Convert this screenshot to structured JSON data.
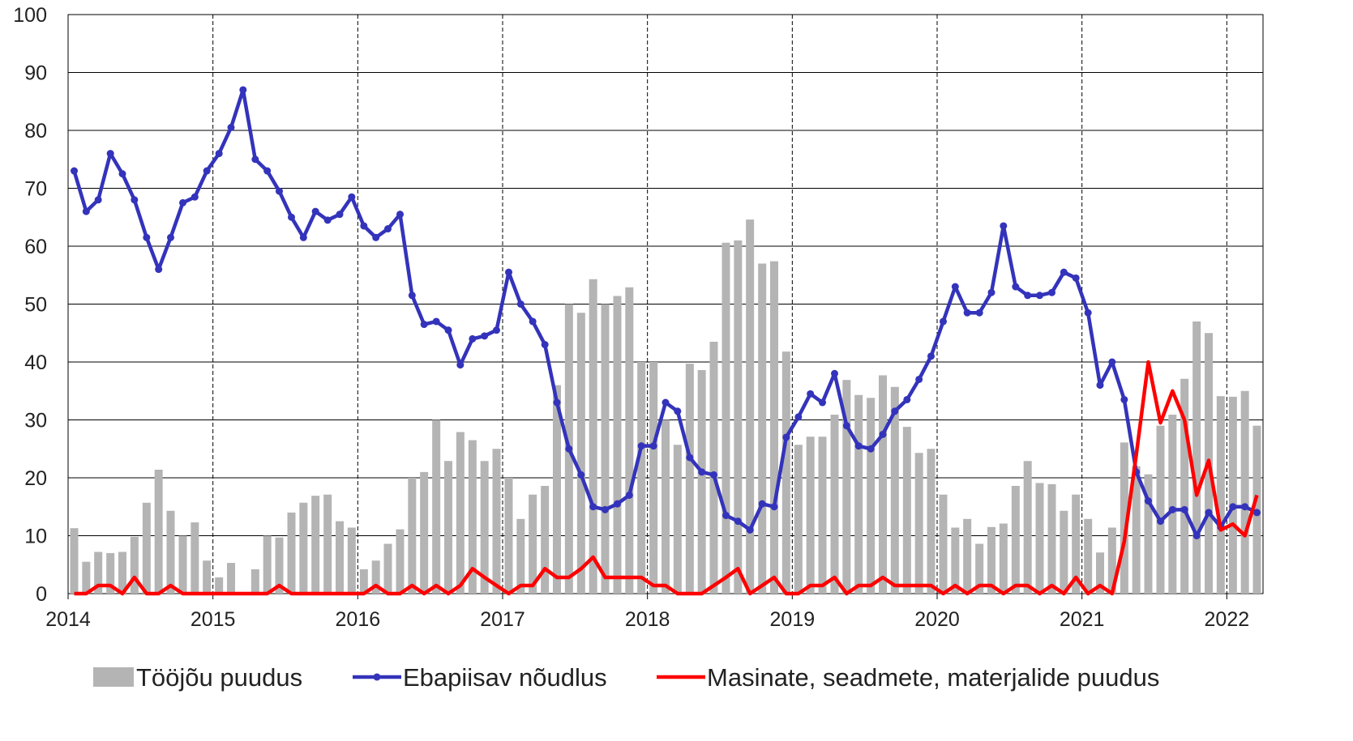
{
  "chart_data": {
    "type": "combo",
    "x": [
      2014.042,
      2014.125,
      2014.208,
      2014.292,
      2014.375,
      2014.458,
      2014.542,
      2014.625,
      2014.708,
      2014.792,
      2014.875,
      2014.958,
      2015.042,
      2015.125,
      2015.208,
      2015.292,
      2015.375,
      2015.458,
      2015.542,
      2015.625,
      2015.708,
      2015.792,
      2015.875,
      2015.958,
      2016.042,
      2016.125,
      2016.208,
      2016.292,
      2016.375,
      2016.458,
      2016.542,
      2016.625,
      2016.708,
      2016.792,
      2016.875,
      2016.958,
      2017.042,
      2017.125,
      2017.208,
      2017.292,
      2017.375,
      2017.458,
      2017.542,
      2017.625,
      2017.708,
      2017.792,
      2017.875,
      2017.958,
      2018.042,
      2018.125,
      2018.208,
      2018.292,
      2018.375,
      2018.458,
      2018.542,
      2018.625,
      2018.708,
      2018.792,
      2018.875,
      2018.958,
      2019.042,
      2019.125,
      2019.208,
      2019.292,
      2019.375,
      2019.458,
      2019.542,
      2019.625,
      2019.708,
      2019.792,
      2019.875,
      2019.958,
      2020.042,
      2020.125,
      2020.208,
      2020.292,
      2020.375,
      2020.458,
      2020.542,
      2020.625,
      2020.708,
      2020.792,
      2020.875,
      2020.958,
      2021.042,
      2021.125,
      2021.208,
      2021.292,
      2021.375,
      2021.458,
      2021.542,
      2021.625,
      2021.708,
      2021.792,
      2021.875,
      2021.958,
      2022.042,
      2022.125,
      2022.208
    ],
    "series": [
      {
        "name": "Tööjõu puudus",
        "type": "bar",
        "color": "#b4b4b4",
        "values": [
          11.3,
          5.5,
          7.2,
          7.0,
          7.2,
          9.8,
          15.7,
          21.4,
          14.3,
          10,
          12.3,
          5.7,
          2.8,
          5.3,
          0,
          4.2,
          10,
          9.7,
          14,
          15.7,
          16.9,
          17.1,
          12.5,
          11.4,
          4.2,
          5.7,
          8.6,
          11.1,
          20,
          21,
          30,
          22.9,
          27.9,
          26.5,
          22.9,
          25,
          20,
          12.9,
          17.1,
          18.6,
          36,
          50,
          48.5,
          54.3,
          50,
          51.4,
          52.9,
          40,
          40,
          30,
          25.7,
          39.7,
          38.6,
          43.5,
          60.6,
          61,
          64.6,
          57,
          57.4,
          41.8,
          25.7,
          27.1,
          27.1,
          30.9,
          36.9,
          34.3,
          33.8,
          37.7,
          35.7,
          28.8,
          24.3,
          25,
          17.1,
          11.4,
          12.9,
          8.6,
          11.5,
          12.1,
          18.6,
          22.9,
          19.1,
          18.9,
          14.3,
          17.1,
          12.9,
          7.1,
          11.4,
          26.1,
          22,
          20.6,
          29,
          30.9,
          37.1,
          47,
          45,
          34.1,
          34,
          35,
          29
        ]
      },
      {
        "name": "Ebapiisav nõudlus",
        "type": "line",
        "color": "#3333bb",
        "marker": true,
        "values": [
          73,
          66,
          68,
          76,
          72.5,
          68,
          61.5,
          56,
          61.5,
          67.5,
          68.5,
          73,
          76,
          80.5,
          87,
          75,
          73,
          69.5,
          65,
          61.5,
          66,
          64.5,
          65.5,
          68.5,
          63.5,
          61.5,
          63,
          65.5,
          51.5,
          46.5,
          47,
          45.5,
          39.5,
          44,
          44.5,
          45.5,
          55.5,
          50,
          47,
          43,
          33,
          25,
          20.5,
          15,
          14.5,
          15.5,
          17,
          25.5,
          25.5,
          33,
          31.5,
          23.5,
          21,
          20.5,
          13.5,
          12.5,
          11,
          15.5,
          15,
          27,
          30.5,
          34.5,
          33,
          38,
          29,
          25.5,
          25,
          27.5,
          31.5,
          33.5,
          37,
          41,
          47,
          53,
          48.5,
          48.5,
          52,
          63.5,
          53,
          51.5,
          51.5,
          52,
          55.5,
          54.5,
          48.5,
          36,
          40,
          33.5,
          21,
          16,
          12.5,
          14.5,
          14.5,
          10,
          14,
          11.5,
          15,
          15,
          14
        ]
      },
      {
        "name": "Masinate, seadmete, materjalide puudus",
        "type": "line",
        "color": "#ff0000",
        "marker": false,
        "values": [
          0,
          0,
          1.4,
          1.4,
          0,
          2.8,
          0,
          0,
          1.4,
          0,
          0,
          0,
          0,
          0,
          0,
          0,
          0,
          1.4,
          0,
          0,
          0,
          0,
          0,
          0,
          0,
          1.4,
          0,
          0,
          1.4,
          0,
          1.4,
          0,
          1.4,
          4.3,
          2.8,
          1.4,
          0,
          1.4,
          1.4,
          4.3,
          2.8,
          2.8,
          4.3,
          6.3,
          2.8,
          2.8,
          2.8,
          2.8,
          1.4,
          1.4,
          0,
          0,
          0,
          1.4,
          2.8,
          4.3,
          0,
          1.4,
          2.8,
          0,
          0,
          1.4,
          1.4,
          2.8,
          0,
          1.4,
          1.4,
          2.8,
          1.4,
          1.4,
          1.4,
          1.4,
          0,
          1.4,
          0,
          1.4,
          1.4,
          0,
          1.4,
          1.4,
          0,
          1.4,
          0,
          2.8,
          0,
          1.4,
          0,
          9,
          24,
          40,
          29.5,
          35,
          30,
          17,
          23,
          11,
          12,
          10,
          17
        ]
      }
    ],
    "xlim": [
      2014,
      2022.25
    ],
    "xticks": [
      2014,
      2015,
      2016,
      2017,
      2018,
      2019,
      2020,
      2021,
      2022
    ],
    "ylim": [
      0,
      100
    ],
    "yticks": [
      0,
      10,
      20,
      30,
      40,
      50,
      60,
      70,
      80,
      90,
      100
    ],
    "grid": true,
    "legend": "bottom"
  }
}
